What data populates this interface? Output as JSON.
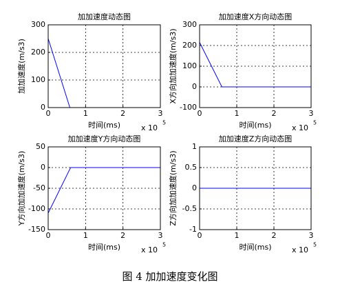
{
  "caption": "图 4  加加速度变化图",
  "chart_data": [
    {
      "type": "line",
      "title": "加加速度动态图",
      "xlabel": "时间(ms)",
      "ylabel": "加加速度(m/s3)",
      "x_multiplier": {
        "base": "x 10",
        "exponent": "5"
      },
      "x": [
        0,
        0.58,
        3
      ],
      "values": [
        250,
        0,
        0
      ],
      "color": "#0000ff",
      "xlim": [
        0,
        3
      ],
      "xticks": [
        0,
        1,
        2,
        3
      ],
      "ylim": [
        0,
        300
      ],
      "yticks": [
        0,
        100,
        200,
        300
      ],
      "grid": true
    },
    {
      "type": "line",
      "title": "加加速度X方向动态图",
      "xlabel": "时间(ms)",
      "ylabel": "X方向加加速度(m/s3)",
      "x_multiplier": {
        "base": "x 10",
        "exponent": "5"
      },
      "x": [
        0,
        0.6,
        3
      ],
      "values": [
        215,
        0,
        0
      ],
      "color": "#0000ff",
      "xlim": [
        0,
        3
      ],
      "xticks": [
        0,
        1,
        2,
        3
      ],
      "ylim": [
        -100,
        300
      ],
      "yticks": [
        -100,
        0,
        100,
        200,
        300
      ],
      "grid": true
    },
    {
      "type": "line",
      "title": "加加速度Y方向动态图",
      "xlabel": "时间(ms)",
      "ylabel": "Y方向加加速度(m/s3)",
      "x_multiplier": {
        "base": "x 10",
        "exponent": "5"
      },
      "x": [
        0,
        0.6,
        3
      ],
      "values": [
        -110,
        0,
        0
      ],
      "color": "#0000ff",
      "xlim": [
        0,
        3
      ],
      "xticks": [
        0,
        1,
        2,
        3
      ],
      "ylim": [
        -150,
        50
      ],
      "yticks": [
        -150,
        -100,
        -50,
        0,
        50
      ],
      "grid": true
    },
    {
      "type": "line",
      "title": "加加速度Z方向动态图",
      "xlabel": "时间(ms)",
      "ylabel": "Z方向加加速度(m/s3)",
      "x_multiplier": {
        "base": "x 10",
        "exponent": "5"
      },
      "x": [
        0,
        3
      ],
      "values": [
        0,
        0
      ],
      "color": "#0000ff",
      "xlim": [
        0,
        3
      ],
      "xticks": [
        0,
        1,
        2,
        3
      ],
      "ylim": [
        -1,
        1
      ],
      "yticks": [
        -1,
        -0.5,
        0,
        0.5,
        1
      ],
      "grid": true
    }
  ]
}
